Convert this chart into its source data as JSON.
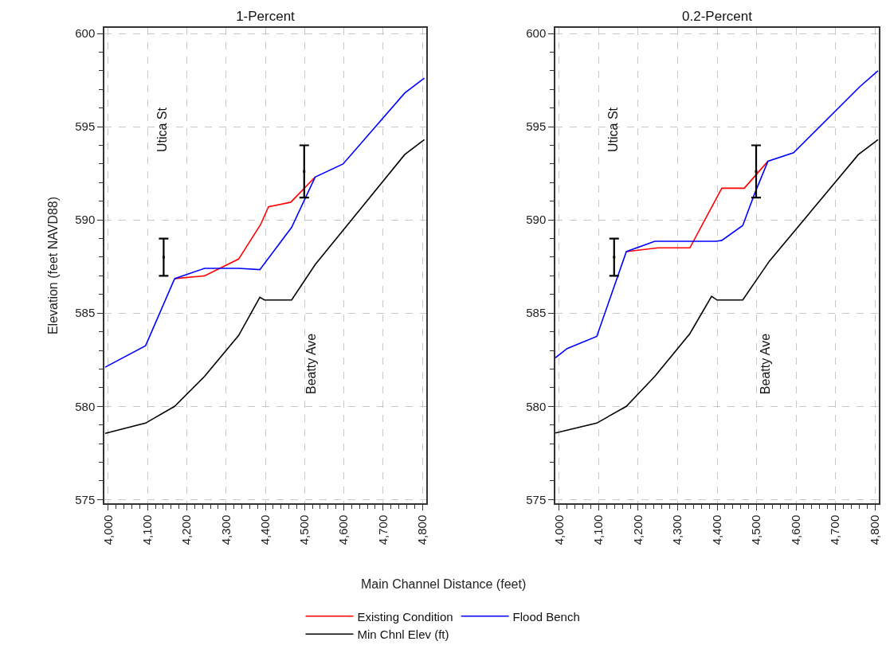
{
  "chart_data": [
    {
      "type": "line",
      "title": "1-Percent",
      "ylabel": "Elevation (feet NAVD88)",
      "xlabel": "Main Channel Distance (feet)",
      "legend": "bottom",
      "grid": true,
      "line_style": "solid",
      "marker": "none",
      "xlim": [
        3990,
        4810
      ],
      "ylim": [
        574.8,
        600.3
      ],
      "xticks": [
        {
          "value": 4000,
          "label": "4,000"
        },
        {
          "value": 4020,
          "label": null
        },
        {
          "value": 4040,
          "label": null
        },
        {
          "value": 4060,
          "label": null
        },
        {
          "value": 4080,
          "label": null
        },
        {
          "value": 4100,
          "label": "4,100"
        },
        {
          "value": 4120,
          "label": null
        },
        {
          "value": 4140,
          "label": null
        },
        {
          "value": 4160,
          "label": null
        },
        {
          "value": 4180,
          "label": null
        },
        {
          "value": 4200,
          "label": "4,200"
        },
        {
          "value": 4220,
          "label": null
        },
        {
          "value": 4240,
          "label": null
        },
        {
          "value": 4260,
          "label": null
        },
        {
          "value": 4280,
          "label": null
        },
        {
          "value": 4300,
          "label": "4,300"
        },
        {
          "value": 4320,
          "label": null
        },
        {
          "value": 4340,
          "label": null
        },
        {
          "value": 4360,
          "label": null
        },
        {
          "value": 4380,
          "label": null
        },
        {
          "value": 4400,
          "label": "4,400"
        },
        {
          "value": 4420,
          "label": null
        },
        {
          "value": 4440,
          "label": null
        },
        {
          "value": 4460,
          "label": null
        },
        {
          "value": 4480,
          "label": null
        },
        {
          "value": 4500,
          "label": "4,500"
        },
        {
          "value": 4520,
          "label": null
        },
        {
          "value": 4540,
          "label": null
        },
        {
          "value": 4560,
          "label": null
        },
        {
          "value": 4580,
          "label": null
        },
        {
          "value": 4600,
          "label": "4,600"
        },
        {
          "value": 4620,
          "label": null
        },
        {
          "value": 4640,
          "label": null
        },
        {
          "value": 4660,
          "label": null
        },
        {
          "value": 4680,
          "label": null
        },
        {
          "value": 4700,
          "label": "4,700"
        },
        {
          "value": 4720,
          "label": null
        },
        {
          "value": 4740,
          "label": null
        },
        {
          "value": 4760,
          "label": null
        },
        {
          "value": 4780,
          "label": null
        },
        {
          "value": 4800,
          "label": "4,800"
        }
      ],
      "yticks": [
        575,
        {
          "value": 576,
          "label": null
        },
        {
          "value": 577,
          "label": null
        },
        {
          "value": 578,
          "label": null
        },
        {
          "value": 579,
          "label": null
        },
        580,
        {
          "value": 581,
          "label": null
        },
        {
          "value": 582,
          "label": null
        },
        {
          "value": 583,
          "label": null
        },
        {
          "value": 584,
          "label": null
        },
        585,
        {
          "value": 586,
          "label": null
        },
        {
          "value": 587,
          "label": null
        },
        {
          "value": 588,
          "label": null
        },
        {
          "value": 589,
          "label": null
        },
        590,
        {
          "value": 591,
          "label": null
        },
        {
          "value": 592,
          "label": null
        },
        {
          "value": 593,
          "label": null
        },
        {
          "value": 594,
          "label": null
        },
        595,
        {
          "value": 596,
          "label": null
        },
        {
          "value": 597,
          "label": null
        },
        {
          "value": 598,
          "label": null
        },
        {
          "value": 599,
          "label": null
        },
        600
      ],
      "series": [
        {
          "name": "Existing Condition",
          "color": "#ff0000",
          "x": [
            4169,
            4245,
            4332,
            4388,
            4408,
            4465,
            4527
          ],
          "values": [
            586.85,
            587.0,
            587.9,
            589.75,
            590.7,
            590.95,
            592.3
          ]
        },
        {
          "name": "Flood Bench",
          "color": "#0000ff",
          "x": [
            3992,
            4095,
            4169,
            4245,
            4332,
            4386,
            4467,
            4527,
            4598,
            4755,
            4805
          ],
          "values": [
            582.1,
            583.25,
            586.85,
            587.4,
            587.4,
            587.33,
            589.6,
            592.3,
            593.0,
            596.8,
            597.6
          ]
        },
        {
          "name": "Min Chnl Elev (ft)",
          "color": "#000000",
          "x": [
            3992,
            4095,
            4169,
            4245,
            4332,
            4386,
            4398,
            4467,
            4527,
            4755,
            4805
          ],
          "values": [
            578.55,
            579.1,
            580.0,
            581.6,
            583.8,
            585.85,
            585.7,
            585.7,
            587.6,
            593.5,
            594.3
          ]
        },
        {
          "type": "scatter",
          "marker": "square",
          "color": "#000000",
          "x": [
            4141,
            4499
          ],
          "values": [
            588,
            592.6
          ],
          "errors": [
            [
              587,
              589
            ],
            [
              591.2,
              594
            ]
          ]
        }
      ],
      "annotations": [
        "Utica St",
        "Beatty Ave"
      ]
    },
    {
      "type": "line",
      "title": "0.2-Percent",
      "grid": true,
      "line_style": "solid",
      "marker": "none",
      "xlim": [
        3990,
        4810
      ],
      "ylim": [
        574.8,
        600.3
      ],
      "xticks": [
        {
          "value": 4000,
          "label": "4,000"
        },
        {
          "value": 4020,
          "label": null
        },
        {
          "value": 4040,
          "label": null
        },
        {
          "value": 4060,
          "label": null
        },
        {
          "value": 4080,
          "label": null
        },
        {
          "value": 4100,
          "label": "4,100"
        },
        {
          "value": 4120,
          "label": null
        },
        {
          "value": 4140,
          "label": null
        },
        {
          "value": 4160,
          "label": null
        },
        {
          "value": 4180,
          "label": null
        },
        {
          "value": 4200,
          "label": "4,200"
        },
        {
          "value": 4220,
          "label": null
        },
        {
          "value": 4240,
          "label": null
        },
        {
          "value": 4260,
          "label": null
        },
        {
          "value": 4280,
          "label": null
        },
        {
          "value": 4300,
          "label": "4,300"
        },
        {
          "value": 4320,
          "label": null
        },
        {
          "value": 4340,
          "label": null
        },
        {
          "value": 4360,
          "label": null
        },
        {
          "value": 4380,
          "label": null
        },
        {
          "value": 4400,
          "label": "4,400"
        },
        {
          "value": 4420,
          "label": null
        },
        {
          "value": 4440,
          "label": null
        },
        {
          "value": 4460,
          "label": null
        },
        {
          "value": 4480,
          "label": null
        },
        {
          "value": 4500,
          "label": "4,500"
        },
        {
          "value": 4520,
          "label": null
        },
        {
          "value": 4540,
          "label": null
        },
        {
          "value": 4560,
          "label": null
        },
        {
          "value": 4580,
          "label": null
        },
        {
          "value": 4600,
          "label": "4,600"
        },
        {
          "value": 4620,
          "label": null
        },
        {
          "value": 4640,
          "label": null
        },
        {
          "value": 4660,
          "label": null
        },
        {
          "value": 4680,
          "label": null
        },
        {
          "value": 4700,
          "label": "4,700"
        },
        {
          "value": 4720,
          "label": null
        },
        {
          "value": 4740,
          "label": null
        },
        {
          "value": 4760,
          "label": null
        },
        {
          "value": 4780,
          "label": null
        },
        {
          "value": 4800,
          "label": "4,800"
        }
      ],
      "yticks": [
        575,
        {
          "value": 576,
          "label": null
        },
        {
          "value": 577,
          "label": null
        },
        {
          "value": 578,
          "label": null
        },
        {
          "value": 579,
          "label": null
        },
        580,
        {
          "value": 581,
          "label": null
        },
        {
          "value": 582,
          "label": null
        },
        {
          "value": 583,
          "label": null
        },
        {
          "value": 584,
          "label": null
        },
        585,
        {
          "value": 586,
          "label": null
        },
        {
          "value": 587,
          "label": null
        },
        {
          "value": 588,
          "label": null
        },
        {
          "value": 589,
          "label": null
        },
        590,
        {
          "value": 591,
          "label": null
        },
        {
          "value": 592,
          "label": null
        },
        {
          "value": 593,
          "label": null
        },
        {
          "value": 594,
          "label": null
        },
        595,
        {
          "value": 596,
          "label": null
        },
        {
          "value": 597,
          "label": null
        },
        {
          "value": 598,
          "label": null
        },
        {
          "value": 599,
          "label": null
        },
        600
      ],
      "series": [
        {
          "color": "#ff0000",
          "x": [
            4170,
            4250,
            4331,
            4412,
            4469,
            4529
          ],
          "values": [
            588.3,
            588.5,
            588.5,
            591.7,
            591.7,
            593.15
          ]
        },
        {
          "color": "#0000ff",
          "x": [
            3990,
            4020,
            4095,
            4170,
            4242,
            4398,
            4412,
            4465,
            4495,
            4529,
            4594,
            4762,
            4808
          ],
          "values": [
            582.6,
            583.1,
            583.75,
            588.3,
            588.85,
            588.85,
            588.9,
            589.7,
            591.4,
            593.15,
            593.6,
            597.15,
            598.0
          ]
        },
        {
          "color": "#000000",
          "x": [
            3990,
            4095,
            4170,
            4242,
            4331,
            4386,
            4400,
            4465,
            4533,
            4758,
            4808
          ],
          "values": [
            578.57,
            579.1,
            580.0,
            581.6,
            583.9,
            585.9,
            585.7,
            585.7,
            587.8,
            593.5,
            594.3
          ]
        },
        {
          "type": "scatter",
          "marker": "square",
          "color": "#000000",
          "x": [
            4139,
            4499
          ],
          "values": [
            588,
            592.6
          ],
          "errors": [
            [
              587,
              589
            ],
            [
              591.2,
              594
            ]
          ]
        }
      ],
      "annotations": [
        "Utica St",
        "Beatty Ave"
      ]
    }
  ]
}
